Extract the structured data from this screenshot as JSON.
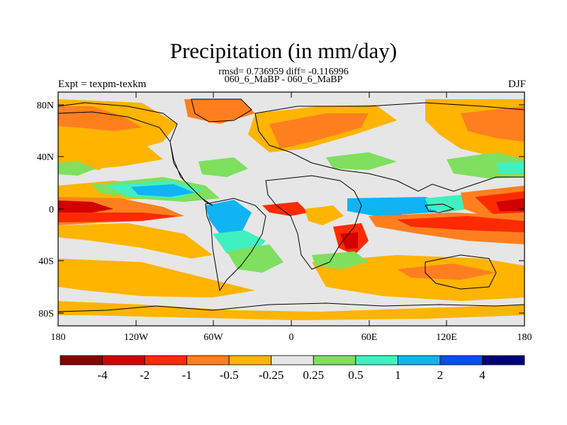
{
  "title": "Precipitation (in mm/day)",
  "stats_line": "rmsd= 0.736959 diff= -0.116996",
  "run_line": "060_6_MaBP - 060_6_MaBP",
  "experiment": "Expt = texpm-texkm",
  "season": "DJF",
  "axes": {
    "x_ticks": [
      "180",
      "120W",
      "60W",
      "0",
      "60E",
      "120E",
      "180"
    ],
    "y_ticks": [
      "80N",
      "40N",
      "0",
      "40S",
      "80S"
    ]
  },
  "colorbar": {
    "labels": [
      "-4",
      "-2",
      "-1",
      "-0.5",
      "-0.25",
      "0.25",
      "0.5",
      "1",
      "2",
      "4"
    ],
    "colors": [
      "#8b0000",
      "#d20000",
      "#ff2a00",
      "#ff7f1f",
      "#ffb400",
      "#e6e6e6",
      "#7fdf5f",
      "#40f0c0",
      "#10b4f4",
      "#0050f0",
      "#00007f"
    ]
  }
}
